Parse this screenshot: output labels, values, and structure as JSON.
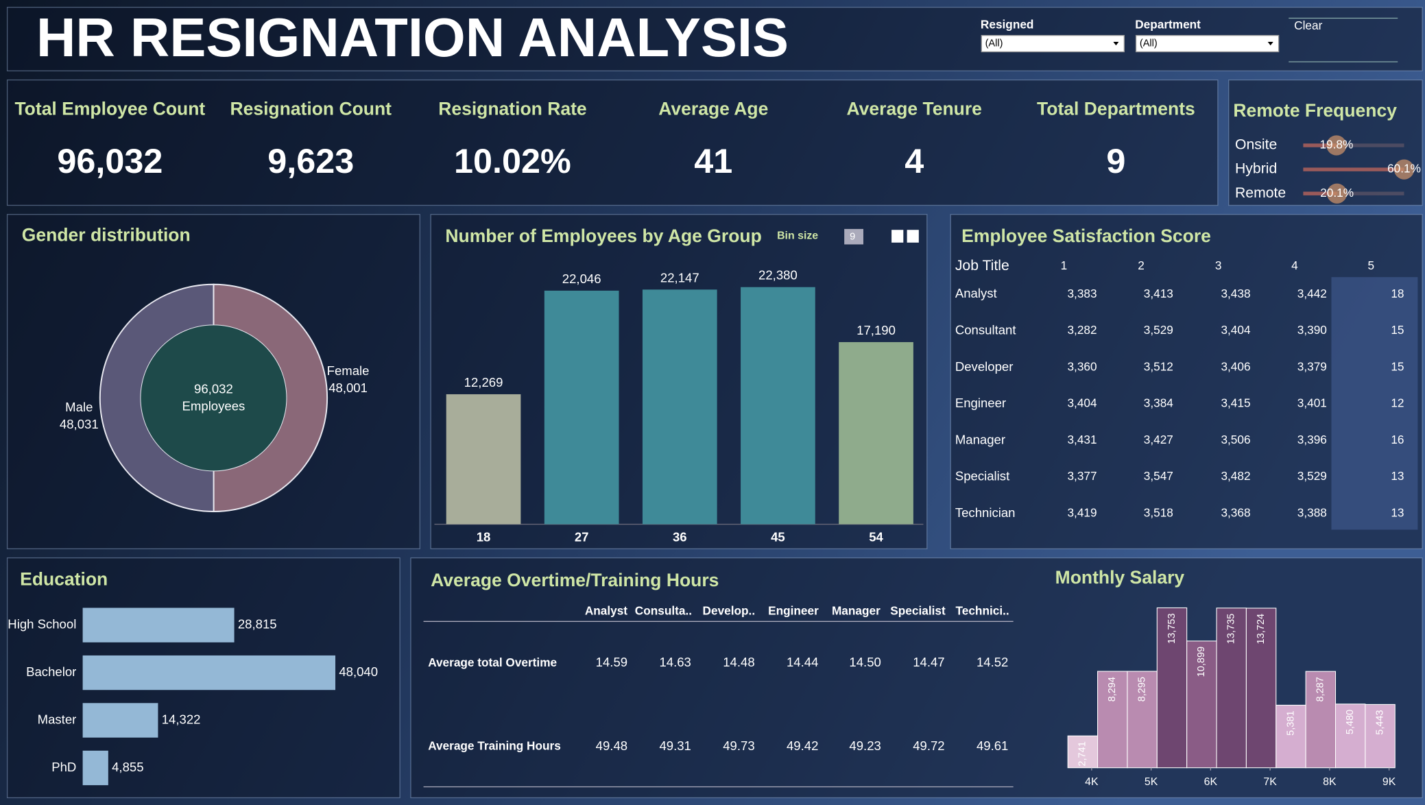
{
  "header": {
    "title": "HR RESIGNATION ANALYSIS"
  },
  "filters": [
    {
      "label": "Resigned",
      "value": "(All)"
    },
    {
      "label": "Department",
      "value": "(All)"
    }
  ],
  "clear": "Clear",
  "kpis": [
    {
      "label": "Total Employee Count",
      "value": "96,032"
    },
    {
      "label": "Resignation Count",
      "value": "9,623"
    },
    {
      "label": "Resignation Rate",
      "value": "10.02%"
    },
    {
      "label": "Average Age",
      "value": "41"
    },
    {
      "label": "Average Tenure",
      "value": "4"
    },
    {
      "label": "Total Departments",
      "value": "9"
    }
  ],
  "chart_data": [
    {
      "type": "lollipop",
      "title": "Remote Frequency",
      "categories": [
        "Onsite",
        "Hybrid",
        "Remote"
      ],
      "values": [
        19.8,
        60.1,
        20.1
      ],
      "value_labels": [
        "19.8%",
        "60.1%",
        "20.1%"
      ],
      "color": "#c8906a"
    },
    {
      "type": "donut",
      "title": "Gender distribution",
      "categories": [
        "Female",
        "Male"
      ],
      "values": [
        48001,
        48031
      ],
      "value_labels": [
        "48,001",
        "48,031"
      ],
      "colors": [
        "#8a6878",
        "#5a5878"
      ],
      "total_label": "96,032",
      "unit_label": "Employees"
    },
    {
      "type": "bar",
      "title": "Number of Employees by Age Group",
      "bin_size_label": "Bin size",
      "bin_size": 9,
      "categories": [
        "18",
        "27",
        "36",
        "45",
        "54"
      ],
      "values": [
        12269,
        22046,
        22147,
        22380,
        17190
      ],
      "value_labels": [
        "12,269",
        "22,046",
        "22,147",
        "22,380",
        "17,190"
      ],
      "colors": [
        "#a8ad9a",
        "#3f8a98",
        "#3f8a98",
        "#3f8a98",
        "#8fab8c"
      ]
    },
    {
      "type": "hbar",
      "title": "Education",
      "categories": [
        "High School",
        "Bachelor",
        "Master",
        "PhD"
      ],
      "values": [
        28815,
        48040,
        14322,
        4855
      ],
      "value_labels": [
        "28,815",
        "48,040",
        "14,322",
        "4,855"
      ],
      "color": "#94b8d6"
    },
    {
      "type": "histogram",
      "title": "Monthly Salary",
      "bins": [
        3600,
        4100,
        4600,
        5100,
        5600,
        6100,
        6600,
        7100,
        7600,
        8100,
        8600,
        9100
      ],
      "values": [
        2741,
        8294,
        8295,
        13753,
        10899,
        13735,
        13724,
        5381,
        8287,
        5480,
        5443
      ],
      "value_labels": [
        "2,741",
        "8,294",
        "8,295",
        "13,753",
        "10,899",
        "13,735",
        "13,724",
        "5,381",
        "8,287",
        "5,480",
        "5,443"
      ],
      "colors": [
        "#e4c8dc",
        "#b98bb0",
        "#b98bb0",
        "#6e4670",
        "#8a5c86",
        "#6e4670",
        "#6e4670",
        "#d5aed0",
        "#b98bb0",
        "#d5aed0",
        "#d5aed0"
      ],
      "xticks": [
        {
          "value": 4000,
          "label": "4K"
        },
        {
          "value": 5000,
          "label": "5K"
        },
        {
          "value": 6000,
          "label": "6K"
        },
        {
          "value": 7000,
          "label": "7K"
        },
        {
          "value": 8000,
          "label": "8K"
        },
        {
          "value": 9000,
          "label": "9K"
        }
      ]
    }
  ],
  "tables": [
    {
      "title": "Employee Satisfaction Score",
      "columns": [
        "Job Title",
        "1",
        "2",
        "3",
        "4",
        "5"
      ],
      "rows": [
        [
          "Analyst",
          "3,383",
          "3,413",
          "3,438",
          "3,442",
          "18"
        ],
        [
          "Consultant",
          "3,282",
          "3,529",
          "3,404",
          "3,390",
          "15"
        ],
        [
          "Developer",
          "3,360",
          "3,512",
          "3,406",
          "3,379",
          "15"
        ],
        [
          "Engineer",
          "3,404",
          "3,384",
          "3,415",
          "3,401",
          "12"
        ],
        [
          "Manager",
          "3,431",
          "3,427",
          "3,506",
          "3,396",
          "16"
        ],
        [
          "Specialist",
          "3,377",
          "3,547",
          "3,482",
          "3,529",
          "13"
        ],
        [
          "Technician",
          "3,419",
          "3,518",
          "3,368",
          "3,388",
          "13"
        ]
      ]
    },
    {
      "title": "Average Overtime/Training Hours",
      "columns": [
        "Analyst",
        "Consulta..",
        "Develop..",
        "Engineer",
        "Manager",
        "Specialist",
        "Technici.."
      ],
      "rows": [
        {
          "label": "Average total Overtime",
          "values": [
            "14.59",
            "14.63",
            "14.48",
            "14.44",
            "14.50",
            "14.47",
            "14.52"
          ]
        },
        {
          "label": "Average Training Hours",
          "values": [
            "49.48",
            "49.31",
            "49.73",
            "49.42",
            "49.23",
            "49.72",
            "49.61"
          ]
        }
      ]
    }
  ]
}
